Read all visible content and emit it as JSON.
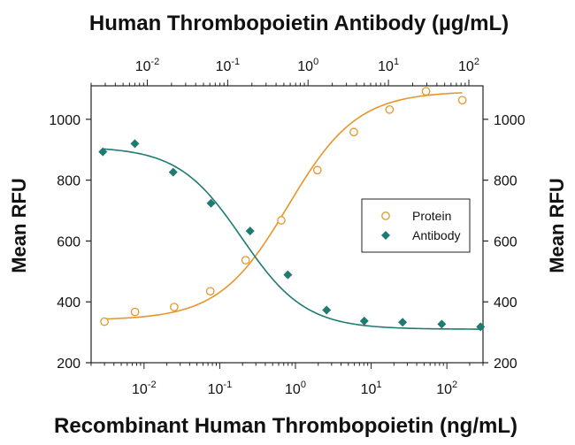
{
  "chart_data": {
    "type": "scatter",
    "top_title": "Human Thrombopoietin Antibody (µg/mL)",
    "xlabel": "Recombinant Human Thrombopoietin (ng/mL)",
    "ylabel_left": "Mean RFU",
    "ylabel_right": "Mean RFU",
    "x_scale": "log",
    "xlim": [
      0.002,
      300
    ],
    "ylim": [
      200,
      1110
    ],
    "top_x_scale": "log",
    "top_xlim": [
      0.002,
      150
    ],
    "y_ticks": [
      "200",
      "400",
      "600",
      "800",
      "1000"
    ],
    "y_tick_values": [
      200,
      400,
      600,
      800,
      1000
    ],
    "x_ticks": [
      {
        "value": 0.01,
        "base": "10",
        "exp": "-2"
      },
      {
        "value": 0.1,
        "base": "10",
        "exp": "-1"
      },
      {
        "value": 1,
        "base": "10",
        "exp": "0"
      },
      {
        "value": 10,
        "base": "10",
        "exp": "1"
      },
      {
        "value": 100,
        "base": "10",
        "exp": "2"
      }
    ],
    "top_x_ticks": [
      {
        "value": 0.01,
        "base": "10",
        "exp": "-2"
      },
      {
        "value": 0.1,
        "base": "10",
        "exp": "-1"
      },
      {
        "value": 1,
        "base": "10",
        "exp": "0"
      },
      {
        "value": 10,
        "base": "10",
        "exp": "1"
      },
      {
        "value": 100,
        "base": "10",
        "exp": "2"
      }
    ],
    "legend_position": "right-middle",
    "grid": false,
    "series": [
      {
        "name": "Protein",
        "marker": "open-circle",
        "color": "#e8952a",
        "axis": "bottom",
        "x": [
          0.003,
          0.0076,
          0.025,
          0.075,
          0.22,
          0.65,
          1.95,
          5.9,
          17.5,
          53,
          160
        ],
        "y": [
          335,
          367,
          383,
          435,
          537,
          668,
          833,
          958,
          1032,
          1092,
          1063
        ],
        "fit": {
          "bottom": 340,
          "top": 1092,
          "ec50": 0.8,
          "hill": 0.95
        }
      },
      {
        "name": "Antibody",
        "marker": "filled-diamond",
        "color": "#1f7b72",
        "axis": "top",
        "x": [
          0.0028,
          0.007,
          0.021,
          0.062,
          0.19,
          0.56,
          1.7,
          5.0,
          15,
          46,
          140
        ],
        "y": [
          893,
          920,
          826,
          724,
          633,
          489,
          373,
          337,
          333,
          327,
          318
        ],
        "fit": {
          "bottom": 310,
          "top": 910,
          "ec50": 0.15,
          "hill": 1.1
        }
      }
    ]
  }
}
